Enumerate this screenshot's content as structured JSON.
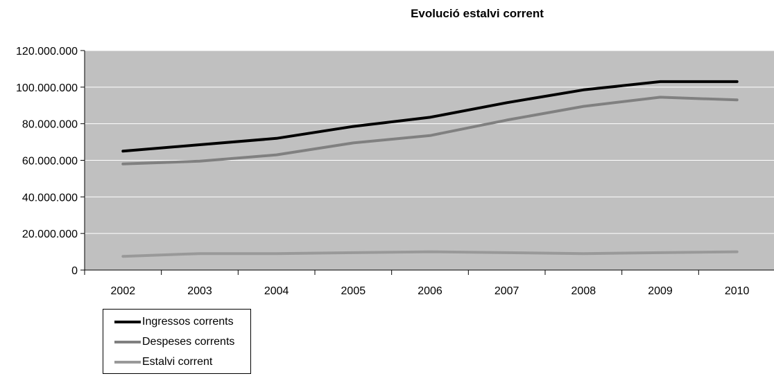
{
  "chart_data": {
    "type": "line",
    "title": "Evolució estalvi corrent",
    "categories": [
      "2002",
      "2003",
      "2004",
      "2005",
      "2006",
      "2007",
      "2008",
      "2009",
      "2010"
    ],
    "y_ticks": [
      "0",
      "20.000.000",
      "40.000.000",
      "60.000.000",
      "80.000.000",
      "100.000.000",
      "120.000.000"
    ],
    "ylim": [
      0,
      120000000
    ],
    "grid": true,
    "legend_position": "bottom-left",
    "background_color": "#c0c0c0",
    "series": [
      {
        "name": "Ingressos corrents",
        "color": "#000000",
        "values": [
          65000000,
          68500000,
          72000000,
          78500000,
          83500000,
          91500000,
          98500000,
          103000000,
          103000000
        ]
      },
      {
        "name": "Despeses corrents",
        "color": "#808080",
        "values": [
          58000000,
          59500000,
          63000000,
          69500000,
          73500000,
          82000000,
          89500000,
          94500000,
          93000000
        ]
      },
      {
        "name": "Estalvi corrent",
        "color": "#999999",
        "values": [
          7500000,
          9000000,
          9000000,
          9500000,
          10000000,
          9500000,
          9000000,
          9500000,
          10000000
        ]
      }
    ]
  }
}
